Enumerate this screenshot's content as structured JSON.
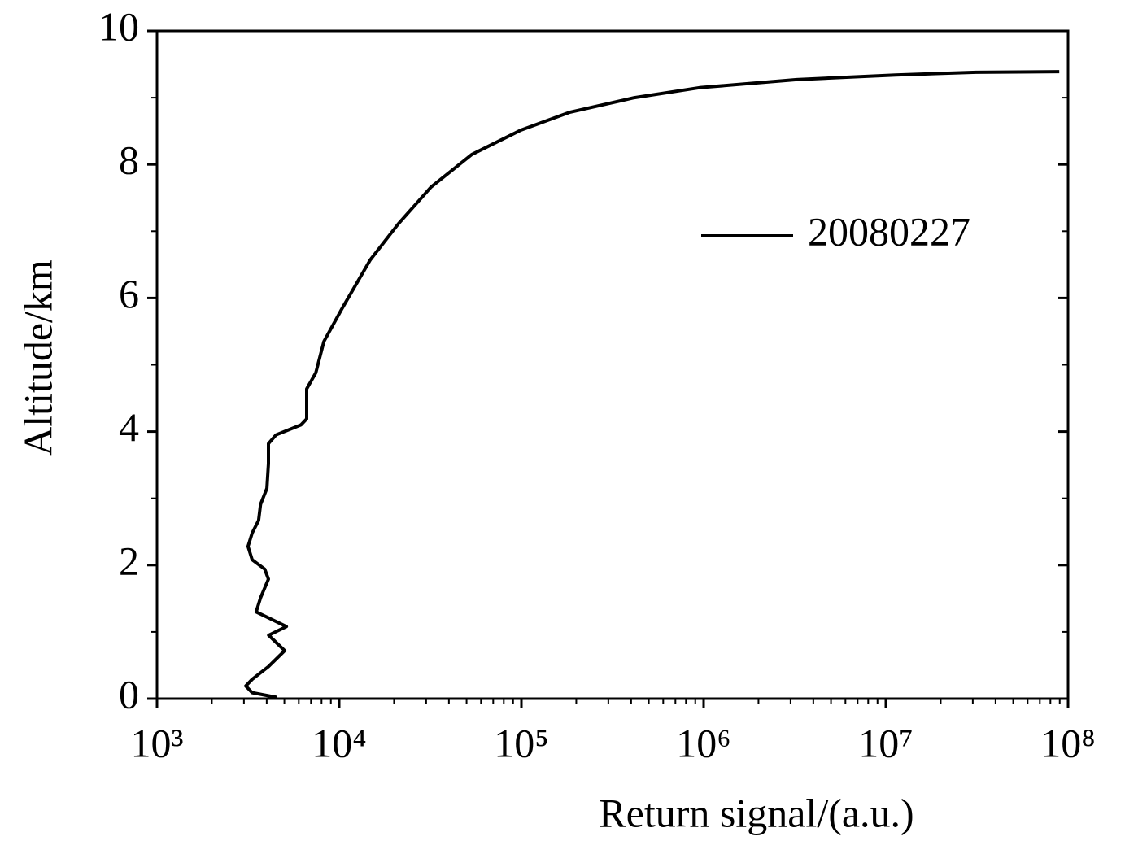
{
  "chart_data": {
    "type": "line",
    "xlabel": "Return signal/(a.u.)",
    "ylabel": "Altitude/km",
    "xscale": "log",
    "xlim": [
      1000,
      100000000
    ],
    "xticks": [
      {
        "value": 1000,
        "label": "10³"
      },
      {
        "value": 10000,
        "label": "10⁴"
      },
      {
        "value": 100000,
        "label": "10⁵"
      },
      {
        "value": 1000000,
        "label": "10⁶"
      },
      {
        "value": 10000000,
        "label": "10⁷"
      },
      {
        "value": 100000000,
        "label": "10⁸"
      }
    ],
    "ylim": [
      0,
      10
    ],
    "yticks": [
      0,
      2,
      4,
      6,
      8,
      10
    ],
    "legend": "upper right",
    "series": [
      {
        "name": "20080227",
        "color": "#000000",
        "x": [
          4530,
          3330,
          3070,
          3330,
          4090,
          5020,
          4760,
          4100,
          5130,
          3500,
          3700,
          4090,
          3900,
          3330,
          3160,
          3330,
          3610,
          3700,
          4010,
          4090,
          4090,
          4500,
          6170,
          6630,
          6630,
          7440,
          8240,
          10300,
          14800,
          21100,
          31900,
          53400,
          98600,
          183000,
          417000,
          949000,
          3240000,
          11300000,
          31200000,
          89500000
        ],
        "values": [
          0.02,
          0.09,
          0.19,
          0.29,
          0.48,
          0.72,
          0.78,
          0.95,
          1.08,
          1.3,
          1.51,
          1.79,
          1.94,
          2.08,
          2.28,
          2.48,
          2.67,
          2.91,
          3.15,
          3.52,
          3.82,
          3.95,
          4.1,
          4.19,
          4.64,
          4.88,
          5.35,
          5.83,
          6.57,
          7.11,
          7.66,
          8.15,
          8.51,
          8.78,
          9.0,
          9.15,
          9.27,
          9.34,
          9.38,
          9.39
        ]
      }
    ]
  }
}
